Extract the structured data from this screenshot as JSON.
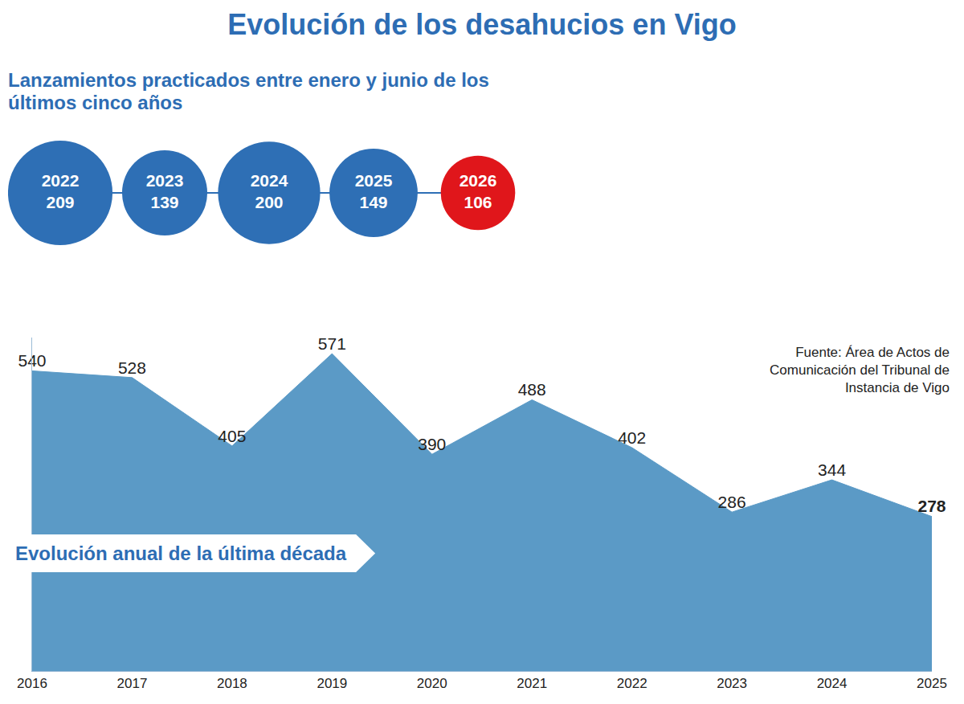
{
  "title": "Evolución de los desahucios en Vigo",
  "source": "Fuente: Área de Actos de Comunicación del Tribunal de Instancia de Vigo",
  "chart_data": [
    {
      "type": "bubble",
      "title": "Lanzamientos practicados entre enero y junio de los últimos cinco años",
      "categories": [
        "2022",
        "2023",
        "2024",
        "2025",
        "2026"
      ],
      "values": [
        209,
        139,
        200,
        149,
        106
      ],
      "colors": [
        "#2e6fb5",
        "#2e6fb5",
        "#2e6fb5",
        "#2e6fb5",
        "#e0161b"
      ],
      "data_labels": true,
      "tick_labels": false
    },
    {
      "type": "area",
      "title": "Evolución anual de la última década",
      "categories": [
        "2016",
        "2017",
        "2018",
        "2019",
        "2020",
        "2021",
        "2022",
        "2023",
        "2024",
        "2025"
      ],
      "values": [
        540,
        528,
        405,
        571,
        390,
        488,
        402,
        286,
        344,
        278
      ],
      "color": "#5b9ac6",
      "ylim": [
        0,
        600
      ],
      "data_labels": true,
      "tick_labels": "x",
      "grid": false
    }
  ]
}
